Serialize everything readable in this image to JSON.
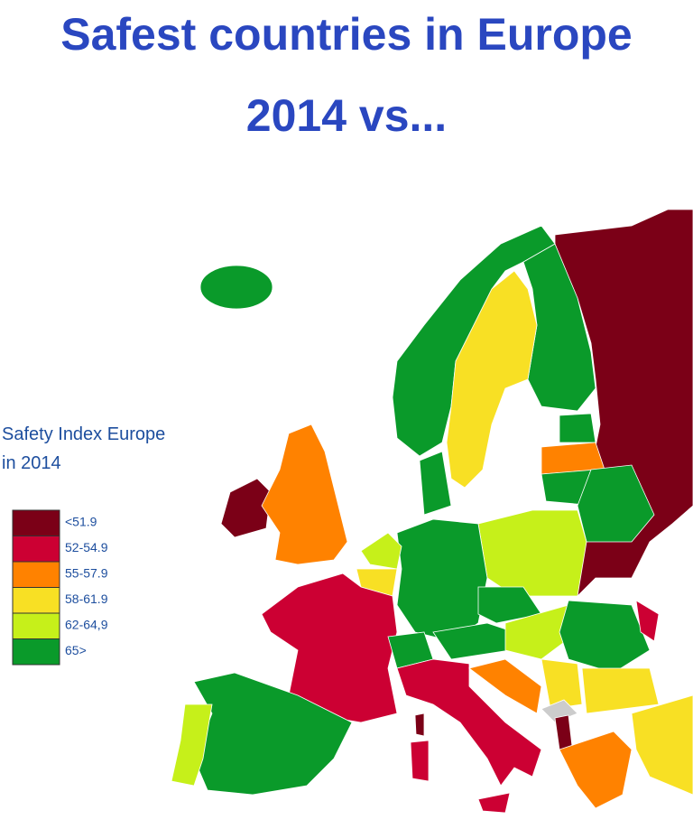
{
  "header": {
    "title_lines": [
      "Safest countries in Europe",
      "2014 vs..."
    ]
  },
  "legend": {
    "title_lines": [
      "Safety Index Europe",
      "in 2014"
    ],
    "items": [
      {
        "label": "<51.9",
        "color": "#7b0017"
      },
      {
        "label": "52-54.9",
        "color": "#cc0033"
      },
      {
        "label": "55-57.9",
        "color": "#ff8200"
      },
      {
        "label": "58-61.9",
        "color": "#f8e024"
      },
      {
        "label": "62-64,9",
        "color": "#c6f01a"
      },
      {
        "label": "65>",
        "color": "#0a9a2a"
      }
    ]
  }
}
